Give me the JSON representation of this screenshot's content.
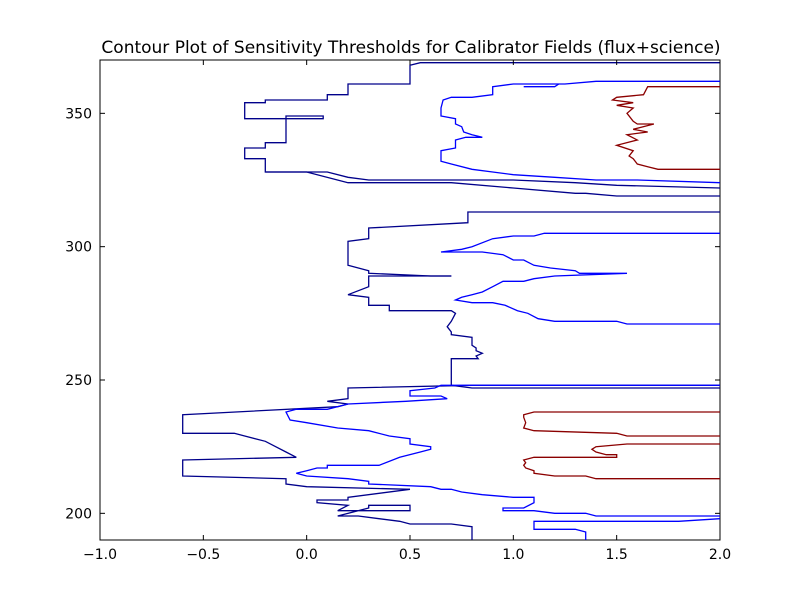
{
  "chart_data": {
    "type": "contour",
    "title": "Contour Plot of Sensitivity Thresholds for Calibrator Fields (flux+science)",
    "xlabel": "",
    "ylabel": "",
    "xlim": [
      -1.0,
      2.0
    ],
    "ylim": [
      190,
      370
    ],
    "x_ticks": [
      -1.0,
      -0.5,
      0.0,
      0.5,
      1.0,
      1.5,
      2.0
    ],
    "x_tick_labels": [
      "−1.0",
      "−0.5",
      "0.0",
      "0.5",
      "1.0",
      "1.5",
      "2.0"
    ],
    "y_ticks": [
      200,
      250,
      300,
      350
    ],
    "y_tick_labels": [
      "200",
      "250",
      "300",
      "350"
    ],
    "grid": false,
    "series": [
      {
        "color": "#00008b",
        "points": [
          [
            2.0,
            369
          ],
          [
            0.55,
            369
          ],
          [
            0.5,
            368
          ],
          [
            0.5,
            361
          ],
          [
            0.2,
            361
          ],
          [
            0.2,
            357
          ],
          [
            0.1,
            357
          ],
          [
            0.1,
            355
          ],
          [
            0.0,
            355
          ],
          [
            -0.2,
            355
          ],
          [
            -0.2,
            354
          ],
          [
            -0.3,
            354
          ],
          [
            -0.3,
            348
          ],
          [
            0.08,
            348
          ],
          [
            0.08,
            349
          ],
          [
            -0.1,
            349
          ],
          [
            -0.1,
            339
          ],
          [
            -0.2,
            339
          ],
          [
            -0.2,
            337
          ],
          [
            -0.3,
            337
          ],
          [
            -0.3,
            333
          ],
          [
            -0.2,
            333
          ],
          [
            -0.2,
            328
          ],
          [
            0.1,
            328
          ],
          [
            0.2,
            326
          ],
          [
            0.3,
            325
          ],
          [
            1.0,
            325
          ],
          [
            1.3,
            324
          ],
          [
            1.5,
            323
          ],
          [
            2.0,
            322
          ]
        ]
      },
      {
        "color": "#0000ff",
        "points": [
          [
            2.0,
            362
          ],
          [
            1.4,
            362
          ],
          [
            1.25,
            361
          ],
          [
            1.0,
            361
          ],
          [
            0.9,
            360
          ],
          [
            0.9,
            357
          ],
          [
            0.8,
            356
          ],
          [
            0.7,
            356
          ],
          [
            0.66,
            355
          ],
          [
            0.65,
            352
          ],
          [
            0.65,
            349
          ],
          [
            0.72,
            348
          ],
          [
            0.72,
            346
          ],
          [
            0.75,
            345
          ],
          [
            0.76,
            343
          ],
          [
            0.8,
            342
          ],
          [
            0.85,
            341
          ],
          [
            0.77,
            341
          ],
          [
            0.72,
            340
          ],
          [
            0.72,
            337
          ],
          [
            0.65,
            336
          ],
          [
            0.65,
            332
          ],
          [
            0.7,
            331
          ],
          [
            0.8,
            329
          ],
          [
            0.9,
            328
          ],
          [
            1.0,
            327
          ],
          [
            1.2,
            326
          ],
          [
            1.4,
            325
          ],
          [
            1.6,
            325
          ],
          [
            2.0,
            324
          ]
        ]
      },
      {
        "color": "#0000ff",
        "points": [
          [
            1.22,
            361
          ],
          [
            1.2,
            360
          ],
          [
            1.05,
            360
          ]
        ]
      },
      {
        "color": "#00008b",
        "points": [
          [
            2.0,
            319
          ],
          [
            1.5,
            319
          ],
          [
            1.35,
            320
          ],
          [
            1.3,
            320
          ],
          [
            1.0,
            322
          ],
          [
            0.7,
            324
          ],
          [
            0.2,
            324
          ],
          [
            0.0,
            328
          ],
          [
            -0.2,
            328
          ]
        ]
      },
      {
        "color": "#8b0000",
        "points": [
          [
            2.0,
            360
          ],
          [
            1.65,
            360
          ],
          [
            1.63,
            357
          ],
          [
            1.5,
            356
          ],
          [
            1.48,
            355
          ],
          [
            1.58,
            354
          ],
          [
            1.5,
            353
          ],
          [
            1.58,
            352
          ],
          [
            1.55,
            350
          ],
          [
            1.58,
            347
          ],
          [
            1.6,
            346
          ],
          [
            1.68,
            346
          ],
          [
            1.58,
            344
          ],
          [
            1.65,
            343
          ],
          [
            1.55,
            342
          ],
          [
            1.6,
            340
          ],
          [
            1.5,
            338
          ],
          [
            1.58,
            336
          ],
          [
            1.56,
            334
          ],
          [
            1.58,
            333
          ],
          [
            1.6,
            331
          ],
          [
            1.65,
            330
          ],
          [
            1.7,
            329
          ],
          [
            2.0,
            329
          ]
        ]
      },
      {
        "color": "#00008b",
        "points": [
          [
            2.0,
            313
          ],
          [
            0.78,
            313
          ],
          [
            0.78,
            309
          ],
          [
            0.3,
            307
          ],
          [
            0.3,
            303
          ],
          [
            0.2,
            302
          ],
          [
            0.2,
            293
          ],
          [
            0.3,
            291
          ],
          [
            0.3,
            290
          ],
          [
            0.6,
            289
          ],
          [
            0.7,
            289
          ]
        ]
      },
      {
        "color": "#00008b",
        "points": [
          [
            0.7,
            289
          ],
          [
            0.3,
            289
          ],
          [
            0.3,
            285
          ],
          [
            0.2,
            282
          ],
          [
            0.3,
            281
          ],
          [
            0.3,
            278
          ],
          [
            0.4,
            278
          ],
          [
            0.4,
            276
          ],
          [
            0.5,
            276
          ],
          [
            0.7,
            276
          ],
          [
            0.72,
            275
          ],
          [
            0.7,
            272
          ],
          [
            0.68,
            270
          ],
          [
            0.7,
            268
          ],
          [
            0.7,
            267
          ],
          [
            0.8,
            266
          ],
          [
            0.8,
            263
          ],
          [
            0.82,
            262
          ],
          [
            0.82,
            261
          ],
          [
            0.85,
            260
          ],
          [
            0.82,
            259
          ],
          [
            0.83,
            258
          ],
          [
            0.7,
            258
          ],
          [
            0.7,
            250
          ],
          [
            0.7,
            248
          ],
          [
            0.8,
            247
          ],
          [
            2.0,
            247
          ]
        ]
      },
      {
        "color": "#0000ff",
        "points": [
          [
            2.0,
            305
          ],
          [
            1.15,
            305
          ],
          [
            1.1,
            304
          ],
          [
            1.0,
            304
          ],
          [
            0.9,
            303
          ],
          [
            0.8,
            300
          ],
          [
            0.75,
            299
          ],
          [
            0.65,
            298
          ],
          [
            0.85,
            298
          ],
          [
            0.95,
            297
          ],
          [
            1.0,
            295
          ],
          [
            1.05,
            295
          ],
          [
            1.1,
            293
          ],
          [
            1.18,
            292
          ],
          [
            1.3,
            291
          ],
          [
            1.32,
            290
          ],
          [
            1.55,
            290
          ],
          [
            1.2,
            289
          ],
          [
            1.1,
            288
          ],
          [
            1.05,
            287
          ],
          [
            0.95,
            287
          ],
          [
            0.9,
            285
          ],
          [
            0.85,
            283
          ],
          [
            0.8,
            282
          ],
          [
            0.75,
            281
          ],
          [
            0.72,
            280
          ],
          [
            0.8,
            279
          ],
          [
            0.9,
            279
          ],
          [
            0.96,
            278
          ],
          [
            1.02,
            276
          ],
          [
            1.07,
            275
          ],
          [
            1.12,
            273
          ],
          [
            1.2,
            272
          ],
          [
            1.5,
            272
          ],
          [
            1.55,
            271
          ],
          [
            2.0,
            271
          ]
        ]
      },
      {
        "color": "#00008b",
        "points": [
          [
            2.0,
            248
          ],
          [
            0.8,
            248
          ],
          [
            0.2,
            247
          ],
          [
            0.2,
            243
          ],
          [
            0.1,
            242
          ],
          [
            0.2,
            241
          ],
          [
            0.15,
            240
          ],
          [
            -0.6,
            237
          ],
          [
            -0.6,
            230
          ],
          [
            -0.35,
            230
          ],
          [
            -0.3,
            229
          ],
          [
            -0.2,
            227
          ],
          [
            -0.15,
            225
          ],
          [
            -0.1,
            223
          ],
          [
            -0.05,
            221
          ],
          [
            -0.6,
            220
          ],
          [
            -0.6,
            214
          ],
          [
            -0.1,
            213
          ],
          [
            -0.1,
            212
          ],
          [
            -0.1,
            211
          ],
          [
            0.0,
            210
          ],
          [
            0.5,
            209
          ]
        ]
      },
      {
        "color": "#00008b",
        "points": [
          [
            0.5,
            209
          ],
          [
            0.2,
            206
          ],
          [
            0.2,
            205
          ],
          [
            0.05,
            205
          ],
          [
            0.05,
            204
          ],
          [
            0.2,
            203
          ],
          [
            0.15,
            201
          ],
          [
            0.5,
            201
          ],
          [
            0.5,
            203
          ],
          [
            0.3,
            203
          ],
          [
            0.3,
            202
          ],
          [
            0.15,
            199
          ],
          [
            0.25,
            199
          ],
          [
            0.35,
            198
          ],
          [
            0.45,
            197
          ],
          [
            0.5,
            196
          ],
          [
            0.7,
            196
          ],
          [
            0.8,
            195
          ],
          [
            0.8,
            190
          ]
        ]
      },
      {
        "color": "#0000ff",
        "points": [
          [
            2.0,
            248
          ],
          [
            0.65,
            248
          ],
          [
            0.62,
            247
          ],
          [
            0.5,
            246
          ],
          [
            0.5,
            244
          ],
          [
            0.65,
            244
          ],
          [
            0.68,
            243
          ],
          [
            0.48,
            242
          ],
          [
            0.2,
            241
          ],
          [
            0.1,
            239
          ],
          [
            -0.05,
            239
          ],
          [
            -0.1,
            238
          ],
          [
            -0.08,
            235
          ],
          [
            0.0,
            234
          ],
          [
            0.15,
            232
          ],
          [
            0.3,
            231
          ],
          [
            0.4,
            229
          ],
          [
            0.5,
            228
          ],
          [
            0.5,
            226
          ],
          [
            0.6,
            225
          ],
          [
            0.6,
            224
          ],
          [
            0.55,
            223
          ],
          [
            0.45,
            221
          ],
          [
            0.35,
            218
          ],
          [
            0.1,
            218
          ],
          [
            0.1,
            217
          ],
          [
            0.05,
            217
          ],
          [
            0.0,
            216
          ],
          [
            -0.05,
            215
          ],
          [
            0.0,
            214
          ],
          [
            0.2,
            213
          ],
          [
            0.3,
            212
          ],
          [
            0.3,
            211
          ],
          [
            0.6,
            210
          ],
          [
            0.65,
            209
          ],
          [
            0.7,
            209
          ],
          [
            0.75,
            208
          ],
          [
            0.85,
            207
          ],
          [
            1.0,
            206
          ],
          [
            1.1,
            206
          ],
          [
            1.1,
            204
          ],
          [
            1.05,
            202
          ],
          [
            0.95,
            202
          ],
          [
            0.95,
            201
          ],
          [
            1.1,
            201
          ],
          [
            1.2,
            200
          ],
          [
            1.35,
            200
          ],
          [
            1.4,
            199
          ],
          [
            2.0,
            199
          ]
        ]
      },
      {
        "color": "#0000ff",
        "points": [
          [
            2.0,
            198
          ],
          [
            1.8,
            197
          ],
          [
            1.1,
            197
          ],
          [
            1.1,
            194
          ],
          [
            1.3,
            194
          ],
          [
            1.35,
            193
          ],
          [
            1.35,
            190
          ]
        ]
      },
      {
        "color": "#8b0000",
        "points": [
          [
            2.0,
            238
          ],
          [
            1.1,
            238
          ],
          [
            1.05,
            237
          ],
          [
            1.05,
            236
          ],
          [
            1.06,
            234
          ],
          [
            1.05,
            232
          ],
          [
            1.1,
            231
          ],
          [
            1.5,
            230
          ],
          [
            1.55,
            229
          ],
          [
            2.0,
            229
          ]
        ]
      },
      {
        "color": "#8b0000",
        "points": [
          [
            2.0,
            226
          ],
          [
            1.55,
            226
          ],
          [
            1.4,
            225
          ],
          [
            1.38,
            224
          ],
          [
            1.4,
            223
          ],
          [
            1.45,
            222
          ],
          [
            1.5,
            222
          ],
          [
            1.5,
            221
          ],
          [
            1.1,
            221
          ],
          [
            1.05,
            220
          ],
          [
            1.06,
            219
          ],
          [
            1.05,
            218
          ],
          [
            1.06,
            217
          ],
          [
            1.1,
            216
          ],
          [
            1.1,
            215
          ],
          [
            1.2,
            214
          ],
          [
            1.35,
            214
          ],
          [
            1.4,
            213
          ],
          [
            2.0,
            213
          ]
        ]
      }
    ]
  }
}
